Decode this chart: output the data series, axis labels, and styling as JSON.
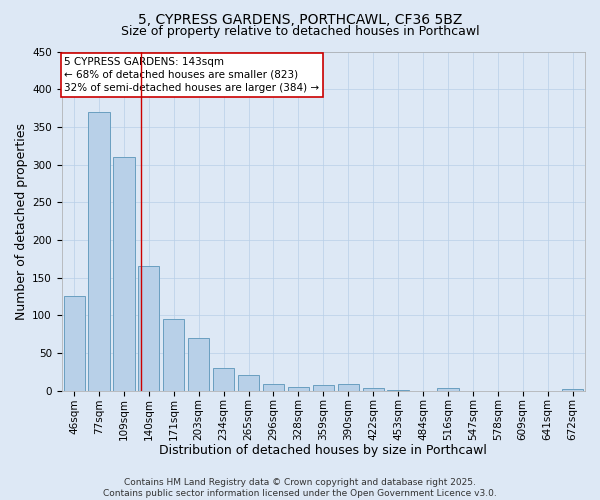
{
  "title": "5, CYPRESS GARDENS, PORTHCAWL, CF36 5BZ",
  "subtitle": "Size of property relative to detached houses in Porthcawl",
  "xlabel": "Distribution of detached houses by size in Porthcawl",
  "ylabel": "Number of detached properties",
  "categories": [
    "46sqm",
    "77sqm",
    "109sqm",
    "140sqm",
    "171sqm",
    "203sqm",
    "234sqm",
    "265sqm",
    "296sqm",
    "328sqm",
    "359sqm",
    "390sqm",
    "422sqm",
    "453sqm",
    "484sqm",
    "516sqm",
    "547sqm",
    "578sqm",
    "609sqm",
    "641sqm",
    "672sqm"
  ],
  "values": [
    125,
    370,
    310,
    165,
    95,
    70,
    30,
    21,
    9,
    5,
    7,
    9,
    3,
    1,
    0,
    3,
    0,
    0,
    0,
    0,
    2
  ],
  "bar_color": "#b8d0e8",
  "bar_edge_color": "#6a9fc0",
  "background_color": "#dde8f5",
  "grid_color": "#b8cfe8",
  "annotation_text": "5 CYPRESS GARDENS: 143sqm\n← 68% of detached houses are smaller (823)\n32% of semi-detached houses are larger (384) →",
  "annotation_box_color": "#ffffff",
  "annotation_border_color": "#cc0000",
  "vline_position": 2.7,
  "ylim": [
    0,
    450
  ],
  "yticks": [
    0,
    50,
    100,
    150,
    200,
    250,
    300,
    350,
    400,
    450
  ],
  "title_fontsize": 10,
  "subtitle_fontsize": 9,
  "axis_label_fontsize": 9,
  "tick_fontsize": 7.5,
  "annotation_fontsize": 7.5,
  "footer_text": "Contains HM Land Registry data © Crown copyright and database right 2025.\nContains public sector information licensed under the Open Government Licence v3.0.",
  "footer_fontsize": 6.5
}
